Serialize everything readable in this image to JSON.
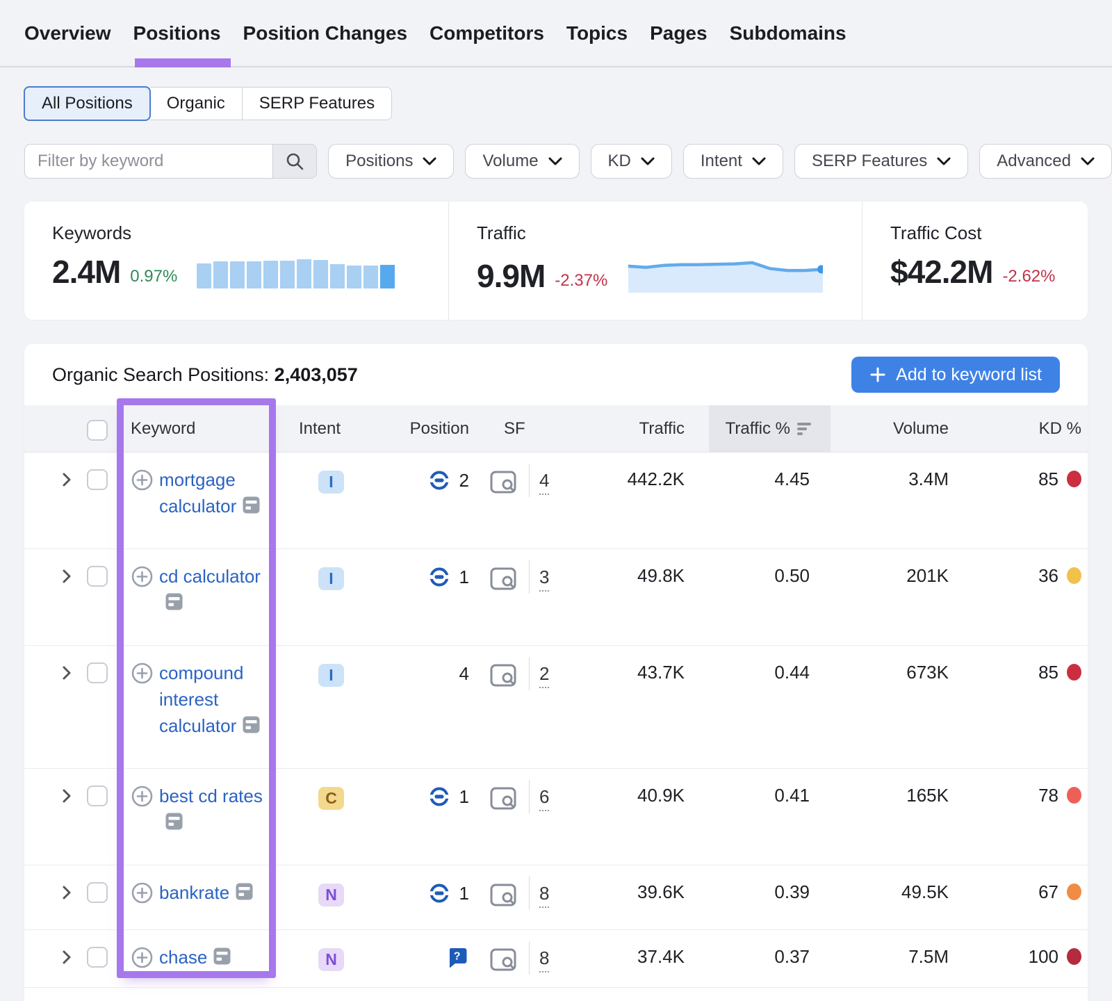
{
  "nav": {
    "tabs": [
      {
        "label": "Overview",
        "active": false
      },
      {
        "label": "Positions",
        "active": true
      },
      {
        "label": "Position Changes",
        "active": false
      },
      {
        "label": "Competitors",
        "active": false
      },
      {
        "label": "Topics",
        "active": false
      },
      {
        "label": "Pages",
        "active": false
      },
      {
        "label": "Subdomains",
        "active": false
      }
    ]
  },
  "filters": {
    "segments": [
      {
        "label": "All Positions",
        "active": true
      },
      {
        "label": "Organic",
        "active": false
      },
      {
        "label": "SERP Features",
        "active": false
      }
    ],
    "keyword_input_placeholder": "Filter by keyword",
    "dropdowns": [
      {
        "label": "Positions"
      },
      {
        "label": "Volume"
      },
      {
        "label": "KD"
      },
      {
        "label": "Intent"
      },
      {
        "label": "SERP Features"
      },
      {
        "label": "Advanced"
      }
    ]
  },
  "stats": {
    "keywords": {
      "label": "Keywords",
      "value": "2.4M",
      "change": "0.97%",
      "change_color": "#2f8a57"
    },
    "traffic": {
      "label": "Traffic",
      "value": "9.9M",
      "change": "-2.37%",
      "change_color": "#c0334a"
    },
    "traffic_cost": {
      "label": "Traffic Cost",
      "value": "$42.2M",
      "change": "-2.62%",
      "change_color": "#c0334a"
    }
  },
  "chart_data": [
    {
      "type": "bar",
      "name": "keywords-trend-sparkline",
      "title": "Keywords trend",
      "values": [
        82,
        88,
        88,
        88,
        90,
        90,
        96,
        93,
        79,
        74,
        74,
        77
      ],
      "ylim": [
        0,
        100
      ],
      "bar_color": "#a9cff3",
      "last_bar_color": "#57a9ee",
      "grid": false
    },
    {
      "type": "area",
      "name": "traffic-trend-sparkline",
      "title": "Traffic trend",
      "values": [
        68,
        65,
        70,
        72,
        72,
        73,
        74,
        77,
        62,
        57,
        57,
        60
      ],
      "ylim": [
        0,
        100
      ],
      "line_color": "#62abea",
      "fill_color": "#d9eafc",
      "end_dot_color": "#3c98ea",
      "grid": false
    }
  ],
  "table": {
    "title": "Organic Search Positions:",
    "count": "2,403,057",
    "add_button": "Add to keyword list",
    "columns": [
      "Keyword",
      "Intent",
      "Position",
      "SF",
      "Traffic",
      "Traffic %",
      "Volume",
      "KD %"
    ],
    "sorted_column": "Traffic %",
    "sort_direction": "desc",
    "rows": [
      {
        "keyword": "mortgage calculator",
        "intent": "I",
        "position": "2",
        "position_icon": "link",
        "sf": "4",
        "traffic": "442.2K",
        "traffic_pct": "4.45",
        "volume": "3.4M",
        "kd": "85",
        "kd_color": "#cb2e40",
        "height": "normal"
      },
      {
        "keyword": "cd calculator",
        "intent": "I",
        "position": "1",
        "position_icon": "link",
        "sf": "3",
        "traffic": "49.8K",
        "traffic_pct": "0.50",
        "volume": "201K",
        "kd": "36",
        "kd_color": "#f2c14b",
        "height": "normal"
      },
      {
        "keyword": "compound interest calculator",
        "intent": "I",
        "position": "4",
        "position_icon": "none",
        "sf": "2",
        "traffic": "43.7K",
        "traffic_pct": "0.44",
        "volume": "673K",
        "kd": "85",
        "kd_color": "#cb2e40",
        "height": "normal"
      },
      {
        "keyword": "best cd rates",
        "intent": "C",
        "position": "1",
        "position_icon": "link",
        "sf": "6",
        "traffic": "40.9K",
        "traffic_pct": "0.41",
        "volume": "165K",
        "kd": "78",
        "kd_color": "#ee6055",
        "height": "normal"
      },
      {
        "keyword": "bankrate",
        "intent": "N",
        "position": "1",
        "position_icon": "link",
        "sf": "8",
        "traffic": "39.6K",
        "traffic_pct": "0.39",
        "volume": "49.5K",
        "kd": "67",
        "kd_color": "#f08c46",
        "height": "short"
      },
      {
        "keyword": "chase",
        "intent": "N",
        "position": "",
        "position_icon": "question",
        "sf": "8",
        "traffic": "37.4K",
        "traffic_pct": "0.37",
        "volume": "7.5M",
        "kd": "100",
        "kd_color": "#b42a3e",
        "height": "shorter"
      }
    ]
  },
  "intent_styles": {
    "I": {
      "bg": "#cbe2f9",
      "fg": "#2f6ac0"
    },
    "C": {
      "bg": "#f3d98e",
      "fg": "#8a6116"
    },
    "N": {
      "bg": "#e7d9f7",
      "fg": "#7b4fd6"
    }
  },
  "colors": {
    "highlight_purple": "#a678ec",
    "accent_blue": "#3f82e6",
    "link_blue": "#2a63c4",
    "position_icon_blue": "#1d5bb8",
    "page_bg": "#f2f3f7",
    "sorted_header_bg": "#e5e6ec"
  }
}
